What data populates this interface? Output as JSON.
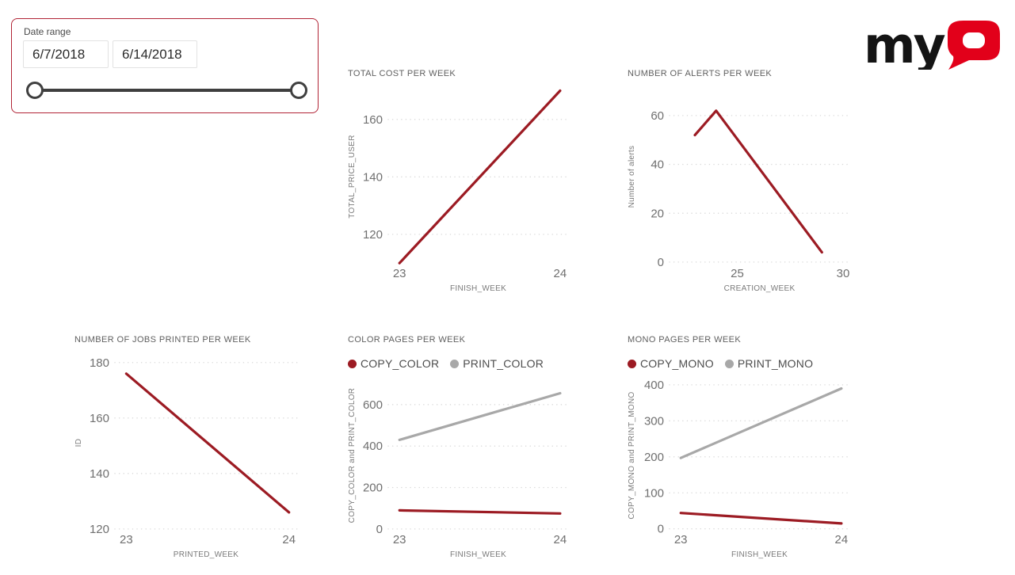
{
  "logo": {
    "text": "myQ",
    "text_my": "my",
    "my_color": "#141414",
    "q_color": "#e2001a"
  },
  "slicer": {
    "label": "Date range",
    "start_value": "6/7/2018",
    "end_value": "6/14/2018"
  },
  "colors": {
    "red_series": "#9c1b23",
    "gray_series": "#a8a8a8",
    "chart_title": "#5f5f5f",
    "tick_label": "#6f6f6f",
    "axis_title": "#7a7a7a",
    "gridline": "#d8d8d8",
    "slicer_border": "#b12436",
    "slider": "#3f3f3f",
    "background": "#ffffff"
  },
  "chart_data": [
    {
      "type": "line",
      "title": "TOTAL COST PER WEEK",
      "xlabel": "FINISH_WEEK",
      "ylabel": "TOTAL_PRICE_USER",
      "x_ticks": [
        23,
        24
      ],
      "y_ticks": [
        120,
        140,
        160
      ],
      "xlim": [
        22.93,
        24.05
      ],
      "ylim": [
        109.5,
        170.7
      ],
      "grid": "dotted-horizontal",
      "legend_position": "none",
      "series": [
        {
          "name": "TOTAL_PRICE_USER",
          "color": "red",
          "points": [
            [
              23,
              110
            ],
            [
              24,
              170
            ]
          ]
        }
      ]
    },
    {
      "type": "line",
      "title": "NUMBER OF ALERTS PER WEEK",
      "xlabel": "CREATION_WEEK",
      "ylabel": "Number of alerts",
      "x_ticks": [
        25,
        30
      ],
      "y_ticks": [
        0,
        20,
        40,
        60
      ],
      "xlim": [
        21.8,
        30.3
      ],
      "ylim": [
        -1,
        71
      ],
      "grid": "dotted-horizontal",
      "legend_position": "none",
      "series": [
        {
          "name": "Number of alerts",
          "color": "red",
          "points": [
            [
              23,
              52
            ],
            [
              24,
              62
            ],
            [
              29,
              4
            ]
          ]
        }
      ]
    },
    {
      "type": "line",
      "title": "NUMBER OF JOBS PRINTED PER WEEK",
      "xlabel": "PRINTED_WEEK",
      "ylabel": "ID",
      "x_ticks": [
        23,
        24
      ],
      "y_ticks": [
        120,
        140,
        160,
        180
      ],
      "xlim": [
        22.93,
        24.05
      ],
      "ylim": [
        119.4,
        182.8
      ],
      "grid": "dotted-horizontal",
      "legend_position": "none",
      "series": [
        {
          "name": "ID",
          "color": "red",
          "points": [
            [
              23,
              176
            ],
            [
              24,
              126
            ]
          ]
        }
      ]
    },
    {
      "type": "line",
      "title": "COLOR PAGES PER WEEK",
      "xlabel": "FINISH_WEEK",
      "ylabel": "COPY_COLOR and PRINT_COLOR",
      "x_ticks": [
        23,
        24
      ],
      "y_ticks": [
        0,
        200,
        400,
        600
      ],
      "xlim": [
        22.93,
        24.05
      ],
      "ylim": [
        -8,
        718
      ],
      "grid": "dotted-horizontal",
      "legend_position": "top",
      "series": [
        {
          "name": "COPY_COLOR",
          "color": "red",
          "points": [
            [
              23,
              90
            ],
            [
              24,
              75
            ]
          ]
        },
        {
          "name": "PRINT_COLOR",
          "color": "gray",
          "points": [
            [
              23,
              430
            ],
            [
              24,
              655
            ]
          ]
        }
      ]
    },
    {
      "type": "line",
      "title": "MONO PAGES PER WEEK",
      "xlabel": "FINISH_WEEK",
      "ylabel": "COPY_MONO and PRINT_MONO",
      "x_ticks": [
        23,
        24
      ],
      "y_ticks": [
        0,
        100,
        200,
        300,
        400
      ],
      "xlim": [
        22.93,
        24.05
      ],
      "ylim": [
        -5,
        413
      ],
      "grid": "dotted-horizontal",
      "legend_position": "top",
      "series": [
        {
          "name": "COPY_MONO",
          "color": "red",
          "points": [
            [
              23,
              44
            ],
            [
              24,
              15
            ]
          ]
        },
        {
          "name": "PRINT_MONO",
          "color": "gray",
          "points": [
            [
              23,
              197
            ],
            [
              24,
              390
            ]
          ]
        }
      ]
    }
  ]
}
